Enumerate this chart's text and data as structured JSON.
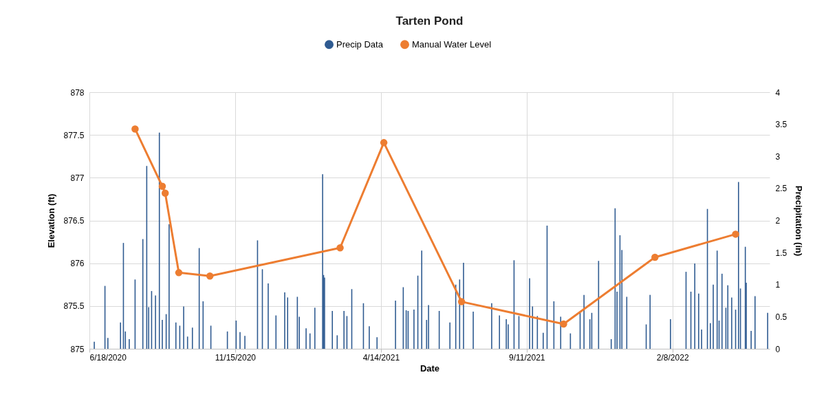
{
  "chart_data": {
    "type": "bar",
    "title": "Tarten Pond",
    "xlabel": "Date",
    "ylabel": "Elevation (ft)",
    "y2label": "Precipitation (in)",
    "xlim": [
      "2020-06-18",
      "2022-05-19"
    ],
    "xticks": [
      {
        "value": "2020-06-18",
        "label": "6/18/2020"
      },
      {
        "value": "2020-11-15",
        "label": "11/15/2020"
      },
      {
        "value": "2021-04-14",
        "label": "4/14/2021"
      },
      {
        "value": "2021-09-11",
        "label": "9/11/2021"
      },
      {
        "value": "2022-02-08",
        "label": "2/8/2022"
      }
    ],
    "ylim": [
      875,
      878
    ],
    "yticks": [
      875,
      875.5,
      876,
      876.5,
      877,
      877.5,
      878
    ],
    "y2lim": [
      0,
      4
    ],
    "y2ticks": [
      0,
      0.5,
      1,
      1.5,
      2,
      2.5,
      3,
      3.5,
      4
    ],
    "grid": true,
    "legend": "top",
    "series": [
      {
        "name": "Precip Data",
        "axis": "y2",
        "color": "#2f5b91",
        "x": [
          "2020-06-23",
          "2020-07-04",
          "2020-07-07",
          "2020-07-20",
          "2020-07-23",
          "2020-07-25",
          "2020-07-29",
          "2020-08-04",
          "2020-08-12",
          "2020-08-16",
          "2020-08-18",
          "2020-08-21",
          "2020-08-25",
          "2020-08-29",
          "2020-09-01",
          "2020-09-05",
          "2020-09-08",
          "2020-09-15",
          "2020-09-19",
          "2020-09-23",
          "2020-09-27",
          "2020-10-02",
          "2020-10-09",
          "2020-10-13",
          "2020-10-21",
          "2020-11-07",
          "2020-11-16",
          "2020-11-20",
          "2020-11-25",
          "2020-12-08",
          "2020-12-13",
          "2020-12-19",
          "2020-12-27",
          "2021-01-05",
          "2021-01-08",
          "2021-01-18",
          "2021-01-20",
          "2021-01-27",
          "2021-01-31",
          "2021-02-05",
          "2021-02-13",
          "2021-02-14",
          "2021-02-15",
          "2021-02-23",
          "2021-02-28",
          "2021-03-07",
          "2021-03-10",
          "2021-03-15",
          "2021-03-27",
          "2021-04-02",
          "2021-04-10",
          "2021-04-29",
          "2021-05-07",
          "2021-05-10",
          "2021-05-12",
          "2021-05-18",
          "2021-05-22",
          "2021-05-26",
          "2021-05-31",
          "2021-06-02",
          "2021-06-13",
          "2021-06-24",
          "2021-06-30",
          "2021-07-04",
          "2021-07-08",
          "2021-07-18",
          "2021-08-06",
          "2021-08-14",
          "2021-08-21",
          "2021-08-23",
          "2021-08-29",
          "2021-09-03",
          "2021-09-14",
          "2021-09-17",
          "2021-09-22",
          "2021-09-28",
          "2021-10-02",
          "2021-10-09",
          "2021-10-16",
          "2021-10-26",
          "2021-11-05",
          "2021-11-09",
          "2021-11-15",
          "2021-11-17",
          "2021-11-24",
          "2021-12-07",
          "2021-12-11",
          "2021-12-13",
          "2021-12-16",
          "2021-12-18",
          "2021-12-23",
          "2022-01-12",
          "2022-01-16",
          "2022-02-06",
          "2022-02-22",
          "2022-02-27",
          "2022-03-03",
          "2022-03-07",
          "2022-03-10",
          "2022-03-16",
          "2022-03-19",
          "2022-03-22",
          "2022-03-26",
          "2022-03-28",
          "2022-03-31",
          "2022-04-04",
          "2022-04-06",
          "2022-04-10",
          "2022-04-14",
          "2022-04-17",
          "2022-04-19",
          "2022-04-24",
          "2022-04-25",
          "2022-04-30",
          "2022-05-04",
          "2022-05-17"
        ],
        "values": [
          0.11,
          0.98,
          0.17,
          0.41,
          1.65,
          0.27,
          0.15,
          1.08,
          1.71,
          2.85,
          0.65,
          0.9,
          0.83,
          3.37,
          0.45,
          0.54,
          1.94,
          0.41,
          0.36,
          0.66,
          0.19,
          0.33,
          1.57,
          0.74,
          0.36,
          0.27,
          0.44,
          0.26,
          0.2,
          1.69,
          1.24,
          1.02,
          0.52,
          0.88,
          0.8,
          0.81,
          0.5,
          0.32,
          0.24,
          0.64,
          2.72,
          1.15,
          1.11,
          0.59,
          0.21,
          0.59,
          0.51,
          0.93,
          0.71,
          0.35,
          0.18,
          0.75,
          0.96,
          0.6,
          0.59,
          0.61,
          1.14,
          1.53,
          0.45,
          0.68,
          0.59,
          0.41,
          1.0,
          1.08,
          1.34,
          0.58,
          0.71,
          0.52,
          0.46,
          0.38,
          1.38,
          0.51,
          1.1,
          0.66,
          0.51,
          0.25,
          1.92,
          0.74,
          0.5,
          0.24,
          0.57,
          0.84,
          0.46,
          0.56,
          1.37,
          0.15,
          2.19,
          0.89,
          1.77,
          1.54,
          0.81,
          0.38,
          0.84,
          0.46,
          1.2,
          0.89,
          1.33,
          0.86,
          0.3,
          2.18,
          0.4,
          1.0,
          1.53,
          0.44,
          1.17,
          0.64,
          0.99,
          0.8,
          0.61,
          2.6,
          0.94,
          1.59,
          1.03,
          0.28,
          0.82,
          0.56
        ]
      },
      {
        "name": "Manual Water Level",
        "type": "line",
        "color": "#ed7d31",
        "marker": "circle",
        "line_style": "solid",
        "x": [
          "2020-08-04",
          "2020-09-01",
          "2020-09-04",
          "2020-09-18",
          "2020-10-20",
          "2021-03-03",
          "2021-04-17",
          "2021-07-06",
          "2021-10-19",
          "2022-01-21",
          "2022-04-14"
        ],
        "values": [
          877.57,
          876.9,
          876.82,
          875.89,
          875.85,
          876.18,
          877.41,
          875.55,
          875.29,
          876.07,
          876.34
        ]
      }
    ]
  }
}
